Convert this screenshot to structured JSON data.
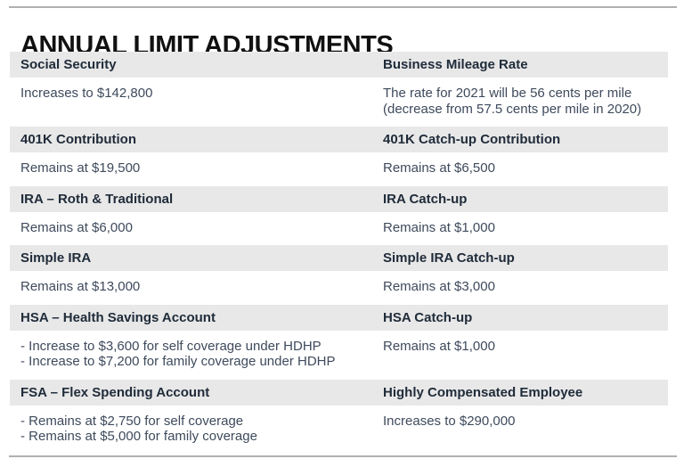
{
  "title": "ANNUAL LIMIT ADJUSTMENTS",
  "colors": {
    "band": "#e8e8e8",
    "header_text": "#202c3a",
    "body_text": "#3e4a5c",
    "title_text": "#111111",
    "rule": "#b0b0b0"
  },
  "table": {
    "sections": [
      {
        "left": {
          "header": "Social Security",
          "lines": [
            "Increases to $142,800"
          ]
        },
        "right": {
          "header": "Business Mileage Rate",
          "lines": [
            "The rate for 2021 will be 56 cents per mile",
            "(decrease from 57.5 cents per mile in 2020)"
          ]
        }
      },
      {
        "left": {
          "header": "401K Contribution",
          "lines": [
            "Remains at $19,500"
          ]
        },
        "right": {
          "header": "401K Catch-up Contribution",
          "lines": [
            "Remains at $6,500"
          ]
        }
      },
      {
        "left": {
          "header": "IRA – Roth & Traditional",
          "lines": [
            "Remains at $6,000"
          ]
        },
        "right": {
          "header": "IRA Catch-up",
          "lines": [
            "Remains at $1,000"
          ]
        }
      },
      {
        "left": {
          "header": "Simple IRA",
          "lines": [
            "Remains at $13,000"
          ]
        },
        "right": {
          "header": "Simple IRA Catch-up",
          "lines": [
            "Remains at $3,000"
          ]
        }
      },
      {
        "left": {
          "header": "HSA – Health Savings Account",
          "lines": [
            "- Increase to $3,600 for self coverage under HDHP",
            "- Increase to $7,200 for family coverage under HDHP"
          ]
        },
        "right": {
          "header": "HSA Catch-up",
          "lines": [
            "Remains at $1,000"
          ]
        }
      },
      {
        "left": {
          "header": "FSA – Flex Spending Account",
          "lines": [
            "- Remains at $2,750 for self coverage",
            "- Remains at $5,000 for family coverage"
          ]
        },
        "right": {
          "header": "Highly Compensated Employee",
          "lines": [
            "Increases to $290,000"
          ]
        }
      }
    ]
  }
}
